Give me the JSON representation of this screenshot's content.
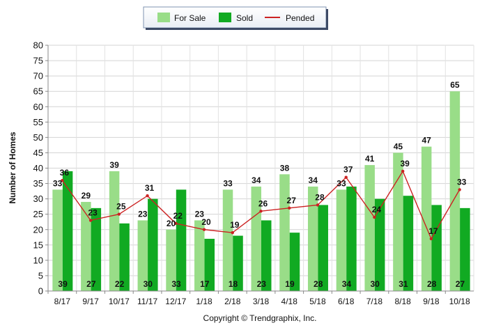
{
  "chart_data": {
    "type": "bar",
    "ylabel": "Number of Homes",
    "xlabel": "",
    "ylim": [
      0,
      80
    ],
    "yticks": [
      0,
      5,
      10,
      15,
      20,
      25,
      30,
      35,
      40,
      45,
      50,
      55,
      60,
      65,
      70,
      75,
      80
    ],
    "grid": true,
    "legend_position": "top-center",
    "categories": [
      "8/17",
      "9/17",
      "10/17",
      "11/17",
      "12/17",
      "1/18",
      "2/18",
      "3/18",
      "4/18",
      "5/18",
      "6/18",
      "7/18",
      "8/18",
      "9/18",
      "10/18"
    ],
    "series": [
      {
        "name": "For Sale",
        "kind": "bar",
        "color": "#99dd88",
        "values": [
          33,
          29,
          39,
          23,
          20,
          23,
          33,
          34,
          38,
          34,
          33,
          41,
          45,
          47,
          65
        ]
      },
      {
        "name": "Sold",
        "kind": "bar",
        "color": "#11aa22",
        "values": [
          39,
          27,
          22,
          30,
          33,
          17,
          18,
          23,
          19,
          28,
          34,
          30,
          31,
          28,
          27
        ]
      },
      {
        "name": "Pended",
        "kind": "line",
        "color": "#cc2222",
        "values": [
          36,
          23,
          25,
          31,
          22,
          20,
          19,
          26,
          27,
          28,
          37,
          24,
          39,
          17,
          33
        ]
      }
    ],
    "footer": "Copyright © Trendgraphix, Inc."
  }
}
